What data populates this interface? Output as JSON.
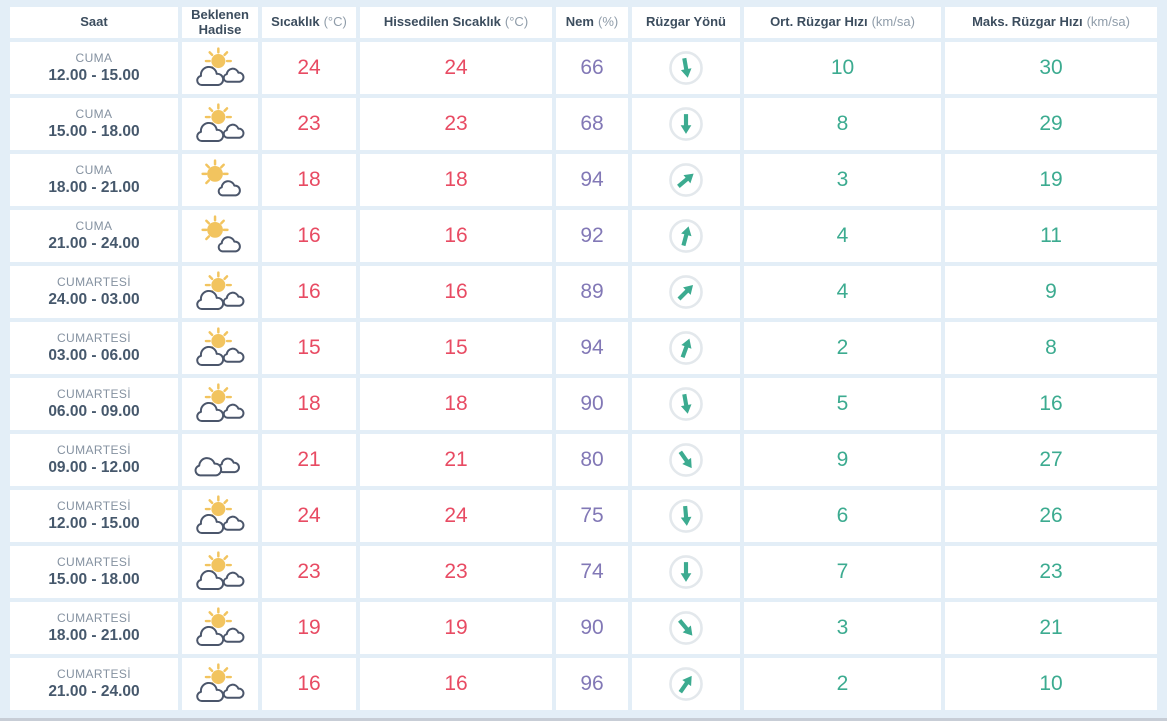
{
  "table": {
    "columns": [
      {
        "label": "Saat",
        "unit": ""
      },
      {
        "label": "Beklenen Hadise",
        "unit": ""
      },
      {
        "label": "Sıcaklık",
        "unit": "(°C)"
      },
      {
        "label": "Hissedilen Sıcaklık",
        "unit": "(°C)"
      },
      {
        "label": "Nem",
        "unit": "(%)"
      },
      {
        "label": "Rüzgar Yönü",
        "unit": ""
      },
      {
        "label": "Ort. Rüzgar Hızı",
        "unit": "(km/sa)"
      },
      {
        "label": "Maks. Rüzgar Hızı",
        "unit": "(km/sa)"
      }
    ],
    "rows": [
      {
        "day": "CUMA",
        "time": "12.00 - 15.00",
        "condition_icon": "sun-two-clouds",
        "temperature": "24",
        "feels_like": "24",
        "humidity": "66",
        "wind_direction_deg": 170,
        "avg_wind_speed": "10",
        "max_wind_speed": "30"
      },
      {
        "day": "CUMA",
        "time": "15.00 - 18.00",
        "condition_icon": "sun-two-clouds",
        "temperature": "23",
        "feels_like": "23",
        "humidity": "68",
        "wind_direction_deg": 180,
        "avg_wind_speed": "8",
        "max_wind_speed": "29"
      },
      {
        "day": "CUMA",
        "time": "18.00 - 21.00",
        "condition_icon": "sun-cloud",
        "temperature": "18",
        "feels_like": "18",
        "humidity": "94",
        "wind_direction_deg": 50,
        "avg_wind_speed": "3",
        "max_wind_speed": "19"
      },
      {
        "day": "CUMA",
        "time": "21.00 - 24.00",
        "condition_icon": "sun-cloud",
        "temperature": "16",
        "feels_like": "16",
        "humidity": "92",
        "wind_direction_deg": 15,
        "avg_wind_speed": "4",
        "max_wind_speed": "11"
      },
      {
        "day": "CUMARTESİ",
        "time": "24.00 - 03.00",
        "condition_icon": "sun-two-clouds",
        "temperature": "16",
        "feels_like": "16",
        "humidity": "89",
        "wind_direction_deg": 45,
        "avg_wind_speed": "4",
        "max_wind_speed": "9"
      },
      {
        "day": "CUMARTESİ",
        "time": "03.00 - 06.00",
        "condition_icon": "sun-two-clouds",
        "temperature": "15",
        "feels_like": "15",
        "humidity": "94",
        "wind_direction_deg": 20,
        "avg_wind_speed": "2",
        "max_wind_speed": "8"
      },
      {
        "day": "CUMARTESİ",
        "time": "06.00 - 09.00",
        "condition_icon": "sun-two-clouds",
        "temperature": "18",
        "feels_like": "18",
        "humidity": "90",
        "wind_direction_deg": 170,
        "avg_wind_speed": "5",
        "max_wind_speed": "16"
      },
      {
        "day": "CUMARTESİ",
        "time": "09.00 - 12.00",
        "condition_icon": "clouds",
        "temperature": "21",
        "feels_like": "21",
        "humidity": "80",
        "wind_direction_deg": 145,
        "avg_wind_speed": "9",
        "max_wind_speed": "27"
      },
      {
        "day": "CUMARTESİ",
        "time": "12.00 - 15.00",
        "condition_icon": "sun-two-clouds",
        "temperature": "24",
        "feels_like": "24",
        "humidity": "75",
        "wind_direction_deg": 175,
        "avg_wind_speed": "6",
        "max_wind_speed": "26"
      },
      {
        "day": "CUMARTESİ",
        "time": "15.00 - 18.00",
        "condition_icon": "sun-two-clouds",
        "temperature": "23",
        "feels_like": "23",
        "humidity": "74",
        "wind_direction_deg": 180,
        "avg_wind_speed": "7",
        "max_wind_speed": "23"
      },
      {
        "day": "CUMARTESİ",
        "time": "18.00 - 21.00",
        "condition_icon": "sun-two-clouds",
        "temperature": "19",
        "feels_like": "19",
        "humidity": "90",
        "wind_direction_deg": 140,
        "avg_wind_speed": "3",
        "max_wind_speed": "21"
      },
      {
        "day": "CUMARTESİ",
        "time": "21.00 - 24.00",
        "condition_icon": "sun-two-clouds",
        "temperature": "16",
        "feels_like": "16",
        "humidity": "96",
        "wind_direction_deg": 35,
        "avg_wind_speed": "2",
        "max_wind_speed": "10"
      }
    ]
  },
  "colors": {
    "temperature": "#e84b63",
    "humidity": "#8278b6",
    "wind": "#3cab90",
    "sun": "#f2c45f",
    "cloud_outline": "#4b566b",
    "arrow_ring": "#e3e8ec",
    "background": "#e3eef7"
  }
}
